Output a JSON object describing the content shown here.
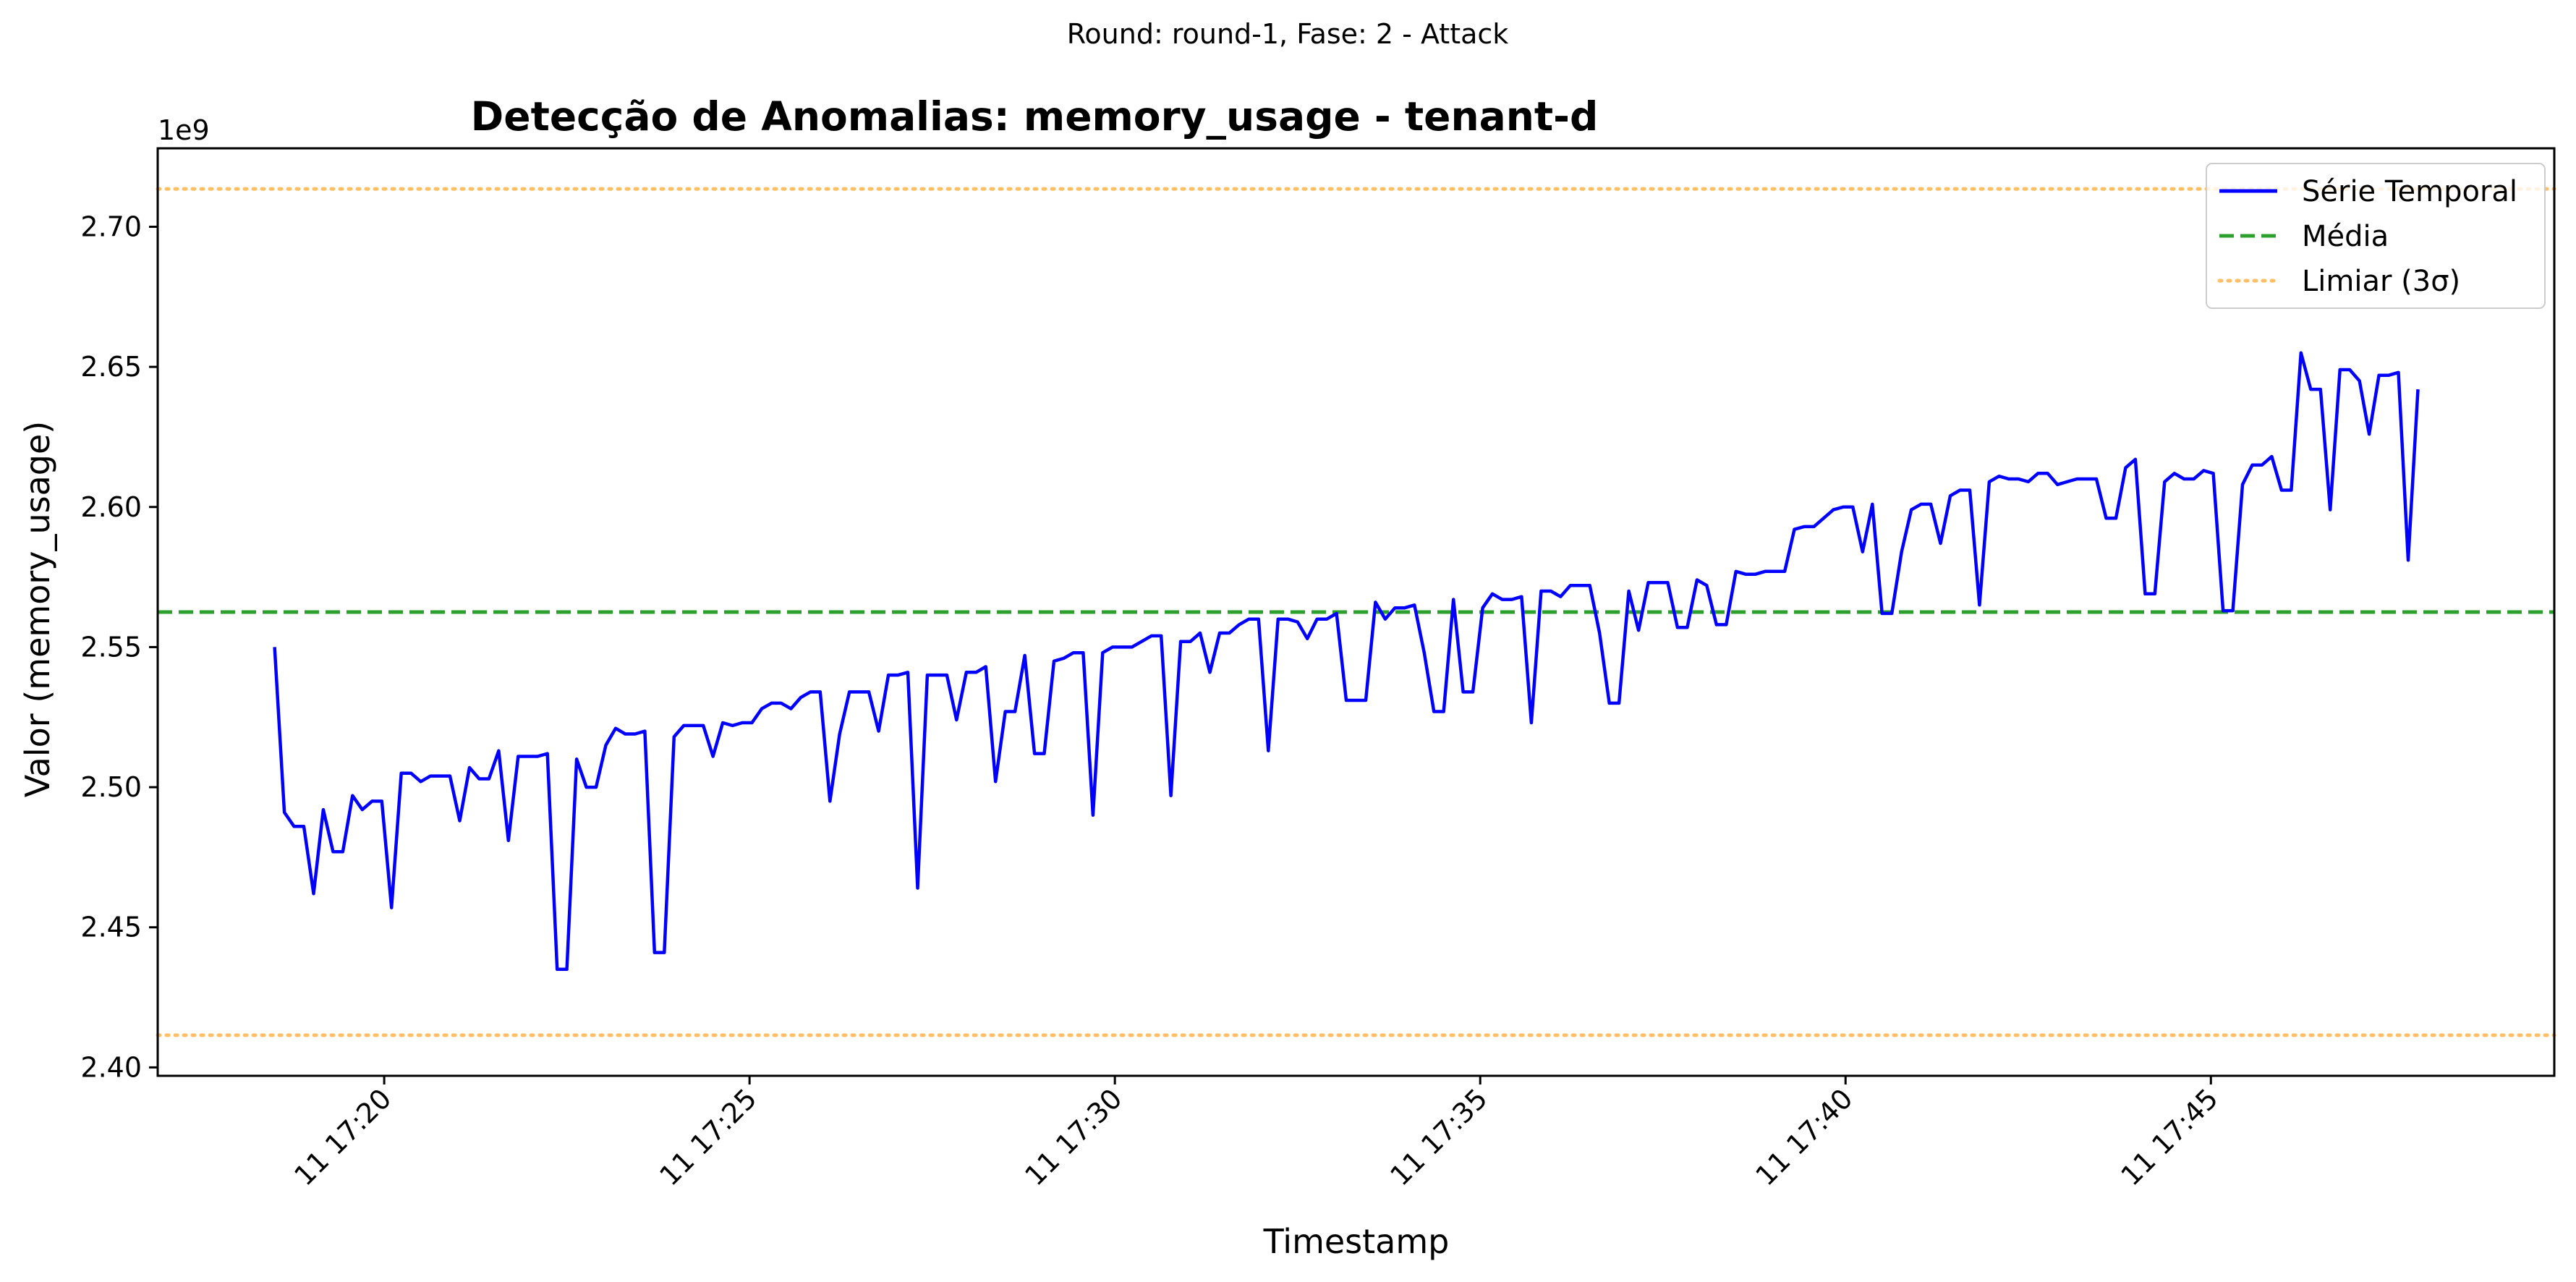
{
  "suptitle": "Round: round-1, Fase: 2 - Attack",
  "chart_data": {
    "type": "line",
    "title": "Detecção de Anomalias: memory_usage - tenant-d",
    "xlabel": "Timestamp",
    "ylabel": "Valor (memory_usage)",
    "y_offset_label": "1e9",
    "x_tick_labels": [
      "11 17:20",
      "11 17:25",
      "11 17:30",
      "11 17:35",
      "11 17:40",
      "11 17:45"
    ],
    "y_tick_labels": [
      "2.40",
      "2.45",
      "2.50",
      "2.55",
      "2.60",
      "2.65",
      "2.70"
    ],
    "y_ticks": [
      2.4,
      2.45,
      2.5,
      2.55,
      2.6,
      2.65,
      2.7
    ],
    "x_ticks": [
      "2024-01-11 17:20",
      "2024-01-11 17:25",
      "2024-01-11 17:30",
      "2024-01-11 17:35",
      "2024-01-11 17:40",
      "2024-01-11 17:45"
    ],
    "xlim": [
      "2024-01-11 17:16:54",
      "2024-01-11 17:49:42"
    ],
    "ylim": [
      2.397,
      2.728
    ],
    "y_unit_multiplier": 1000000000.0,
    "x_time": [
      "17:18:30",
      "17:18:38",
      "17:18:46",
      "17:18:54",
      "17:19:02",
      "17:19:10",
      "17:19:18",
      "17:19:26",
      "17:19:34",
      "17:19:42",
      "17:19:50",
      "17:19:58",
      "17:20:06",
      "17:20:14",
      "17:20:22",
      "17:20:30",
      "17:20:38",
      "17:20:46",
      "17:20:54",
      "17:21:02",
      "17:21:10",
      "17:21:18",
      "17:21:26",
      "17:21:34",
      "17:21:42",
      "17:21:50",
      "17:21:58",
      "17:22:06",
      "17:22:14",
      "17:22:22",
      "17:22:30",
      "17:22:38",
      "17:22:46",
      "17:22:54",
      "17:23:02",
      "17:23:10",
      "17:23:18",
      "17:23:26",
      "17:23:34",
      "17:23:42",
      "17:23:50",
      "17:23:58",
      "17:24:06",
      "17:24:14",
      "17:24:22",
      "17:24:30",
      "17:24:38",
      "17:24:46",
      "17:24:54",
      "17:25:02",
      "17:25:10",
      "17:25:18",
      "17:25:26",
      "17:25:34",
      "17:25:42",
      "17:25:50",
      "17:25:58",
      "17:26:06",
      "17:26:14",
      "17:26:22",
      "17:26:30",
      "17:26:38",
      "17:26:46",
      "17:26:54",
      "17:27:02",
      "17:27:10",
      "17:27:18",
      "17:27:26",
      "17:27:34",
      "17:27:42",
      "17:27:50",
      "17:27:58",
      "17:28:06",
      "17:28:14",
      "17:28:22",
      "17:28:30",
      "17:28:38",
      "17:28:46",
      "17:28:54",
      "17:29:02",
      "17:29:10",
      "17:29:18",
      "17:29:26",
      "17:29:34",
      "17:29:42",
      "17:29:50",
      "17:29:58",
      "17:30:06",
      "17:30:14",
      "17:30:22",
      "17:30:30",
      "17:30:38",
      "17:30:46",
      "17:30:54",
      "17:31:02",
      "17:31:10",
      "17:31:18",
      "17:31:26",
      "17:31:34",
      "17:31:42",
      "17:31:50",
      "17:31:58",
      "17:32:06",
      "17:32:14",
      "17:32:22",
      "17:32:30",
      "17:32:38",
      "17:32:46",
      "17:32:54",
      "17:33:02",
      "17:33:10",
      "17:33:18",
      "17:33:26",
      "17:33:34",
      "17:33:42",
      "17:33:50",
      "17:33:58",
      "17:34:06",
      "17:34:14",
      "17:34:22",
      "17:34:30",
      "17:34:38",
      "17:34:46",
      "17:34:54",
      "17:35:02",
      "17:35:10",
      "17:35:18",
      "17:35:26",
      "17:35:34",
      "17:35:42",
      "17:35:50",
      "17:35:58",
      "17:36:06",
      "17:36:14",
      "17:36:22",
      "17:36:30",
      "17:36:38",
      "17:36:46",
      "17:36:54",
      "17:37:02",
      "17:37:10",
      "17:37:18",
      "17:37:26",
      "17:37:34",
      "17:37:42",
      "17:37:50",
      "17:37:58",
      "17:38:06",
      "17:38:14",
      "17:38:22",
      "17:38:30",
      "17:38:38",
      "17:38:46",
      "17:38:54",
      "17:39:02",
      "17:39:10",
      "17:39:18",
      "17:39:26",
      "17:39:34",
      "17:39:42",
      "17:39:50",
      "17:39:58",
      "17:40:06",
      "17:40:14",
      "17:40:22",
      "17:40:30",
      "17:40:38",
      "17:40:46",
      "17:40:54",
      "17:41:02",
      "17:41:10",
      "17:41:18",
      "17:41:26",
      "17:41:34",
      "17:41:42",
      "17:41:50",
      "17:41:58",
      "17:42:06",
      "17:42:14",
      "17:42:22",
      "17:42:30",
      "17:42:38",
      "17:42:46",
      "17:42:54",
      "17:43:02",
      "17:43:10",
      "17:43:18",
      "17:43:26",
      "17:43:34",
      "17:43:42",
      "17:43:50",
      "17:43:58",
      "17:44:06",
      "17:44:14",
      "17:44:22",
      "17:44:30",
      "17:44:38",
      "17:44:46",
      "17:44:54",
      "17:45:02",
      "17:45:10",
      "17:45:18",
      "17:45:26",
      "17:45:34",
      "17:45:42",
      "17:45:50",
      "17:45:58",
      "17:46:06",
      "17:46:14",
      "17:46:22",
      "17:46:30",
      "17:46:38",
      "17:46:46",
      "17:46:54",
      "17:47:02",
      "17:47:10",
      "17:47:18",
      "17:47:26",
      "17:47:34",
      "17:47:42",
      "17:47:50",
      "17:47:58",
      "17:48:06"
    ],
    "series": [
      {
        "name": "Série Temporal",
        "style": "solid",
        "color": "#0000ff",
        "values": [
          2.55,
          2.491,
          2.486,
          2.486,
          2.462,
          2.492,
          2.477,
          2.477,
          2.497,
          2.492,
          2.495,
          2.495,
          2.457,
          2.505,
          2.505,
          2.502,
          2.504,
          2.504,
          2.504,
          2.488,
          2.507,
          2.503,
          2.503,
          2.513,
          2.481,
          2.511,
          2.511,
          2.511,
          2.512,
          2.435,
          2.435,
          2.51,
          2.5,
          2.5,
          2.515,
          2.521,
          2.519,
          2.519,
          2.52,
          2.441,
          2.441,
          2.518,
          2.522,
          2.522,
          2.522,
          2.511,
          2.523,
          2.522,
          2.523,
          2.523,
          2.528,
          2.53,
          2.53,
          2.528,
          2.532,
          2.534,
          2.534,
          2.495,
          2.519,
          2.534,
          2.534,
          2.534,
          2.52,
          2.54,
          2.54,
          2.541,
          2.464,
          2.54,
          2.54,
          2.54,
          2.524,
          2.541,
          2.541,
          2.543,
          2.502,
          2.527,
          2.527,
          2.547,
          2.512,
          2.512,
          2.545,
          2.546,
          2.548,
          2.548,
          2.49,
          2.548,
          2.55,
          2.55,
          2.55,
          2.552,
          2.554,
          2.554,
          2.497,
          2.552,
          2.552,
          2.555,
          2.541,
          2.555,
          2.555,
          2.558,
          2.56,
          2.56,
          2.513,
          2.56,
          2.56,
          2.559,
          2.553,
          2.56,
          2.56,
          2.562,
          2.531,
          2.531,
          2.531,
          2.566,
          2.56,
          2.564,
          2.564,
          2.565,
          2.548,
          2.527,
          2.527,
          2.567,
          2.534,
          2.534,
          2.564,
          2.569,
          2.567,
          2.567,
          2.568,
          2.523,
          2.57,
          2.57,
          2.568,
          2.572,
          2.572,
          2.572,
          2.555,
          2.53,
          2.53,
          2.57,
          2.556,
          2.573,
          2.573,
          2.573,
          2.557,
          2.557,
          2.574,
          2.572,
          2.558,
          2.558,
          2.577,
          2.576,
          2.576,
          2.577,
          2.577,
          2.577,
          2.592,
          2.593,
          2.593,
          2.596,
          2.599,
          2.6,
          2.6,
          2.584,
          2.601,
          2.562,
          2.562,
          2.584,
          2.599,
          2.601,
          2.601,
          2.587,
          2.604,
          2.606,
          2.606,
          2.565,
          2.609,
          2.611,
          2.61,
          2.61,
          2.609,
          2.612,
          2.612,
          2.608,
          2.609,
          2.61,
          2.61,
          2.61,
          2.596,
          2.596,
          2.614,
          2.617,
          2.569,
          2.569,
          2.609,
          2.612,
          2.61,
          2.61,
          2.613,
          2.612,
          2.563,
          2.563,
          2.608,
          2.615,
          2.615,
          2.618,
          2.606,
          2.606,
          2.655,
          2.642,
          2.642,
          2.599,
          2.649,
          2.649,
          2.645,
          2.626,
          2.647,
          2.647,
          2.648,
          2.581,
          2.642
        ]
      },
      {
        "name": "Média",
        "style": "dashed",
        "color": "#2ca02c",
        "value": 2.5625
      },
      {
        "name": "Limiar (3σ)",
        "style": "dotted",
        "color": "#ffbf66",
        "values": [
          2.4115,
          2.7135
        ]
      }
    ],
    "legend_position": "top-right",
    "grid": false
  }
}
